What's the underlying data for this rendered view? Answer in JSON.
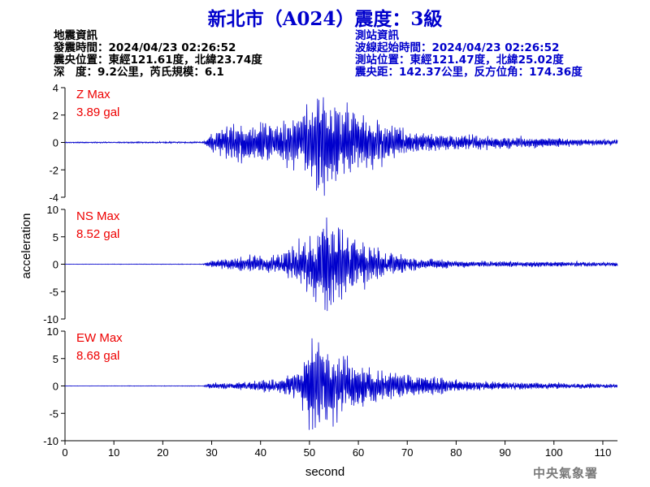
{
  "header": {
    "title": "新北市（A024）震度：3級",
    "quake_info": [
      "地震資訊",
      "發震時間：2024/04/23 02:26:52",
      "震央位置：東經121.61度，北緯23.74度",
      "深　度：9.2公里，芮氏規模：6.1"
    ],
    "station_info": [
      "測站資訊",
      "波線起始時間：2024/04/23 02:26:52",
      "測站位置：東經121.47度，北緯25.02度",
      "震央距：142.37公里，反方位角：174.36度"
    ]
  },
  "colors": {
    "title": "#0000cc",
    "trace": "#0000cc",
    "max_label": "#ee0000",
    "axes": "#000000",
    "watermark": "#7a7a7a"
  },
  "watermark": "中央氣象署",
  "chart_data": {
    "type": "line",
    "xlabel": "second",
    "ylabel": "acceleration",
    "xlim": [
      0,
      113
    ],
    "x_ticks": [
      "0",
      "10",
      "20",
      "30",
      "40",
      "50",
      "60",
      "70",
      "80",
      "90",
      "100",
      "110"
    ],
    "grid": false,
    "panels": [
      {
        "name": "Z",
        "max_label": "Z Max",
        "max_value": "3.89 gal",
        "peak": 3.89,
        "ylim": [
          -4,
          4
        ],
        "y_ticks": [
          "4",
          "2",
          "0",
          "-2",
          "-4"
        ],
        "envelope": [
          [
            0,
            0.04
          ],
          [
            28,
            0.06
          ],
          [
            29,
            0.3
          ],
          [
            30,
            0.8
          ],
          [
            35,
            1.4
          ],
          [
            42,
            1.3
          ],
          [
            48,
            1.9
          ],
          [
            50,
            2.6
          ],
          [
            53,
            3.89
          ],
          [
            57,
            2.6
          ],
          [
            60,
            2.2
          ],
          [
            66,
            1.3
          ],
          [
            72,
            0.7
          ],
          [
            80,
            0.5
          ],
          [
            90,
            0.45
          ],
          [
            100,
            0.3
          ],
          [
            113,
            0.2
          ]
        ]
      },
      {
        "name": "NS",
        "max_label": "NS Max",
        "max_value": "8.52 gal",
        "peak": 8.52,
        "ylim": [
          -10,
          10
        ],
        "y_ticks": [
          "10",
          "5",
          "0",
          "-5",
          "-10"
        ],
        "envelope": [
          [
            0,
            0.03
          ],
          [
            28,
            0.05
          ],
          [
            29,
            0.3
          ],
          [
            30,
            0.6
          ],
          [
            38,
            1.5
          ],
          [
            44,
            1.6
          ],
          [
            48,
            4.0
          ],
          [
            51,
            6.0
          ],
          [
            53.5,
            8.52
          ],
          [
            57,
            6.0
          ],
          [
            60,
            4.5
          ],
          [
            66,
            2.0
          ],
          [
            72,
            1.1
          ],
          [
            80,
            0.6
          ],
          [
            90,
            0.5
          ],
          [
            100,
            0.45
          ],
          [
            113,
            0.35
          ]
        ]
      },
      {
        "name": "EW",
        "max_label": "EW Max",
        "max_value": "8.68 gal",
        "peak": 8.68,
        "ylim": [
          -10,
          10
        ],
        "y_ticks": [
          "10",
          "5",
          "0",
          "-5",
          "-10"
        ],
        "envelope": [
          [
            0,
            0.03
          ],
          [
            28,
            0.05
          ],
          [
            29,
            0.3
          ],
          [
            30,
            0.5
          ],
          [
            38,
            0.8
          ],
          [
            44,
            1.2
          ],
          [
            48,
            3.2
          ],
          [
            50.5,
            8.68
          ],
          [
            54,
            7.0
          ],
          [
            58,
            5.0
          ],
          [
            63,
            3.0
          ],
          [
            70,
            2.0
          ],
          [
            78,
            1.3
          ],
          [
            85,
            0.8
          ],
          [
            95,
            0.6
          ],
          [
            105,
            0.45
          ],
          [
            113,
            0.35
          ]
        ]
      }
    ]
  }
}
